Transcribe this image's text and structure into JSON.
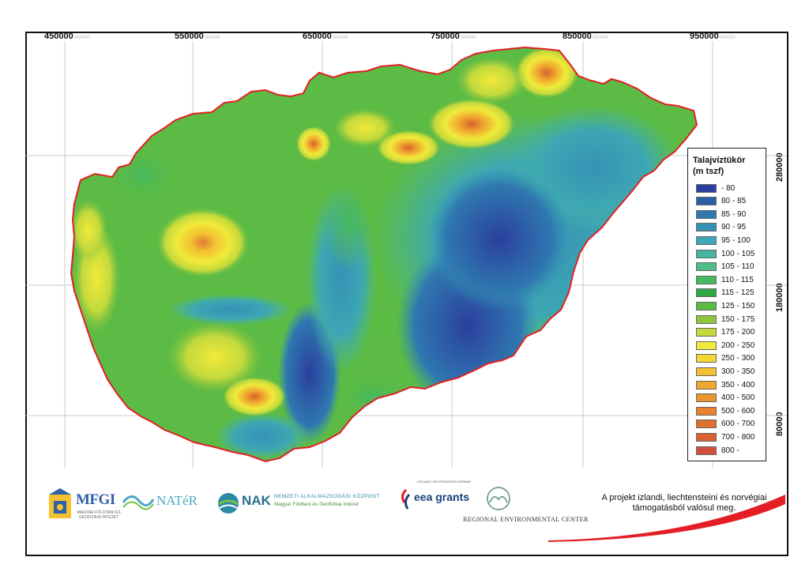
{
  "map": {
    "x_ticks": [
      "450000",
      "550000",
      "650000",
      "750000",
      "850000",
      "950000"
    ],
    "x_tick_suffix": "000000",
    "y_ticks": [
      "280000",
      "180000",
      "80000"
    ],
    "y_tick_suffix": "000000"
  },
  "legend": {
    "title_line1": "Talajvíztükör",
    "title_line2": "(m tszf)",
    "items": [
      {
        "label": " - 80",
        "color": "#2b3f9e"
      },
      {
        "label": "80 - 85",
        "color": "#2d5ea8"
      },
      {
        "label": "85 - 90",
        "color": "#2f78b0"
      },
      {
        "label": "90 - 95",
        "color": "#3592b4"
      },
      {
        "label": "95 - 100",
        "color": "#3da7b3"
      },
      {
        "label": "100 - 105",
        "color": "#46b5a0"
      },
      {
        "label": "105 - 110",
        "color": "#4fbd84"
      },
      {
        "label": "110 - 115",
        "color": "#45b860"
      },
      {
        "label": "115 - 125",
        "color": "#2fa843"
      },
      {
        "label": "125 - 150",
        "color": "#5cbb44"
      },
      {
        "label": "150 - 175",
        "color": "#8dc63f"
      },
      {
        "label": "175 - 200",
        "color": "#c3d93c"
      },
      {
        "label": "200 - 250",
        "color": "#f1ea3a"
      },
      {
        "label": "250 - 300",
        "color": "#f6d634"
      },
      {
        "label": "300 - 350",
        "color": "#f3c031"
      },
      {
        "label": "350 - 400",
        "color": "#f0a82f"
      },
      {
        "label": "400 - 500",
        "color": "#ec952e"
      },
      {
        "label": "500 - 600",
        "color": "#e8822d"
      },
      {
        "label": "600 - 700",
        "color": "#e0702d"
      },
      {
        "label": "700 - 800",
        "color": "#d9612f"
      },
      {
        "label": "800 -",
        "color": "#d04f3a"
      }
    ]
  },
  "footer": {
    "mfgi": "MFGI",
    "mfgi_sub": "MAGYAR FÖLDTANI ÉS GEOFIZIKAI INTÉZET",
    "nater": "NATéR",
    "nak": "NAK",
    "nak_line1": "NEMZETI ALKALMAZKODÁSI KÖZPONT",
    "nak_line2": "Magyar Földtani és Geofizikai Intézet",
    "eea_small": "ICELAND LIECHTENSTEIN NORWAY",
    "eea": "eea grants",
    "rec": "REGIONAL ENVIRONMENTAL CENTER",
    "project_text": "A projekt izlandi, liechtensteini és norvégiai támogatásból valósul meg."
  },
  "colors": {
    "border_red": "#e31e24",
    "frame": "#111111"
  }
}
